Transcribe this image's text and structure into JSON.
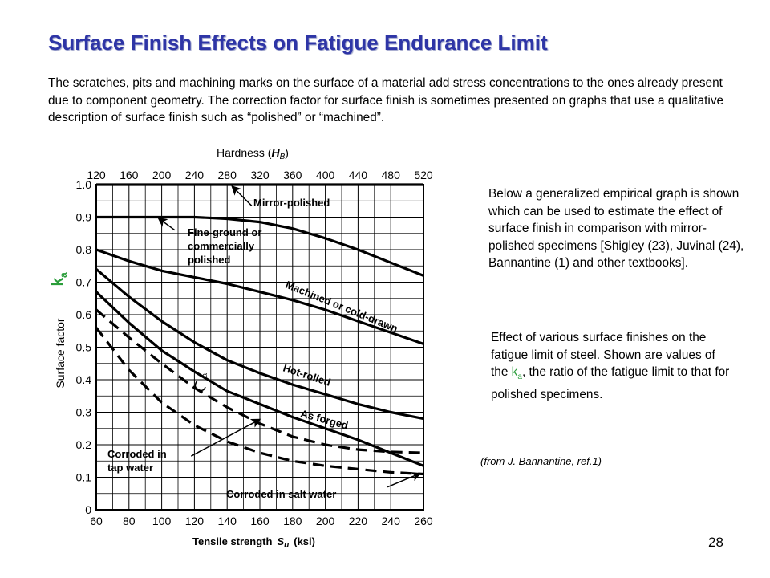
{
  "slide": {
    "title": "Surface Finish Effects on Fatigue Endurance Limit",
    "intro": "The scratches, pits and machining marks on the surface of a material add stress concentrations to the ones already present due to component geometry. The correction factor for surface finish is sometimes presented on graphs that use a qualitative description of surface finish such as “polished” or “machined”.",
    "side_text": "Below a generalized empirical graph is shown which can be used to estimate the effect of surface finish in comparison with mirror-polished specimens [Shigley (23), Juvinal (24), Bannantine (1) and other textbooks].",
    "caption_pre": "Effect of various surface finishes on the fatigue limit of steel. Shown are values of the ",
    "caption_k": "k",
    "caption_a": "a",
    "caption_post": ", the ratio of the fatigue limit to that for polished specimens.",
    "citation": "(from J. Bannantine, ref.1)",
    "page_number": "28",
    "ka_label": "k",
    "ka_sub": "a",
    "accent_color": "#2a9d3a",
    "title_color": "#2e35a6"
  },
  "chart_data": {
    "type": "line",
    "title": "",
    "xlabel": "Tensile strength",
    "xlabel_symbol": "S",
    "xlabel_sub": "u",
    "xlabel_unit": "(ksi)",
    "ylabel": "Surface factor",
    "top_axis_label": "Hardness (",
    "top_axis_symbol": "H",
    "top_axis_sub": "B",
    "top_axis_close": ")",
    "x_ticks": [
      "60",
      "80",
      "100",
      "120",
      "140",
      "160",
      "180",
      "200",
      "220",
      "240",
      "260"
    ],
    "top_ticks": [
      "120",
      "160",
      "200",
      "240",
      "280",
      "320",
      "360",
      "400",
      "440",
      "480",
      "520"
    ],
    "y_ticks": [
      "0",
      "0.1",
      "0.2",
      "0.3",
      "0.4",
      "0.5",
      "0.6",
      "0.7",
      "0.8",
      "0.9",
      "1.0"
    ],
    "xlim": [
      60,
      260
    ],
    "ylim": [
      0,
      1.0
    ],
    "grid": true,
    "small_label": "a",
    "series": [
      {
        "name": "Mirror-polished",
        "style": "solid",
        "x": [
          60,
          260
        ],
        "y": [
          1.0,
          1.0
        ]
      },
      {
        "name": "Fine-ground or commercially polished",
        "style": "solid",
        "x": [
          60,
          80,
          100,
          120,
          140,
          160,
          180,
          200,
          220,
          240,
          260
        ],
        "y": [
          0.9,
          0.9,
          0.9,
          0.9,
          0.895,
          0.885,
          0.865,
          0.835,
          0.8,
          0.76,
          0.72
        ]
      },
      {
        "name": "Machined or cold-drawn",
        "style": "solid",
        "x": [
          60,
          80,
          100,
          120,
          140,
          160,
          180,
          200,
          220,
          240,
          260
        ],
        "y": [
          0.8,
          0.765,
          0.735,
          0.715,
          0.695,
          0.67,
          0.645,
          0.615,
          0.58,
          0.545,
          0.51
        ]
      },
      {
        "name": "Hot-rolled",
        "style": "solid",
        "x": [
          60,
          80,
          100,
          120,
          140,
          160,
          180,
          200,
          220,
          240,
          260
        ],
        "y": [
          0.74,
          0.655,
          0.58,
          0.515,
          0.46,
          0.42,
          0.385,
          0.355,
          0.325,
          0.3,
          0.28
        ]
      },
      {
        "name": "As forged",
        "style": "solid",
        "x": [
          60,
          80,
          100,
          120,
          140,
          160,
          180,
          200,
          220,
          240,
          260
        ],
        "y": [
          0.67,
          0.575,
          0.49,
          0.425,
          0.365,
          0.325,
          0.285,
          0.25,
          0.215,
          0.175,
          0.135
        ]
      },
      {
        "name": "Corroded in tap water",
        "style": "dashed",
        "x": [
          60,
          80,
          100,
          120,
          140,
          160,
          180,
          200,
          220,
          240,
          260
        ],
        "y": [
          0.615,
          0.53,
          0.45,
          0.375,
          0.315,
          0.265,
          0.225,
          0.2,
          0.185,
          0.178,
          0.175
        ]
      },
      {
        "name": "Corroded in salt water",
        "style": "dashed",
        "x": [
          60,
          80,
          100,
          120,
          140,
          160,
          180,
          200,
          220,
          240,
          260
        ],
        "y": [
          0.56,
          0.43,
          0.33,
          0.26,
          0.21,
          0.175,
          0.15,
          0.135,
          0.125,
          0.115,
          0.11
        ]
      }
    ],
    "annotations": {
      "mirror_polished": "Mirror-polished",
      "fine_ground_1": "Fine-ground or",
      "fine_ground_2": "commercially",
      "fine_ground_3": "polished",
      "machined": "Machined or cold-drawn",
      "hot_rolled": "Hot-rolled",
      "as_forged": "As forged",
      "tap_water_1": "Corroded in",
      "tap_water_2": "tap water",
      "salt_water": "Corroded in salt water"
    }
  }
}
